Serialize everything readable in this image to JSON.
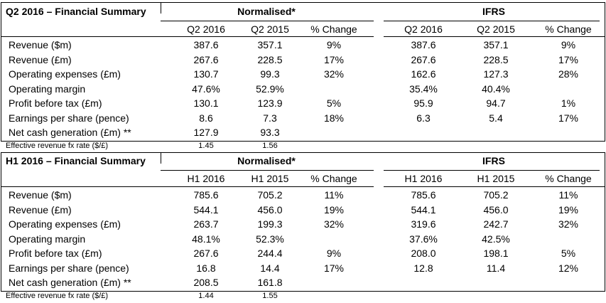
{
  "q2": {
    "title": "Q2 2016 – Financial Summary",
    "normalised_label": "Normalised*",
    "ifrs_label": "IFRS",
    "cols": [
      "Q2 2016",
      "Q2 2015",
      "% Change",
      "Q2 2016",
      "Q2 2015",
      "% Change"
    ],
    "rows": [
      {
        "label": "Revenue ($m)",
        "v": [
          "387.6",
          "357.1",
          "9%",
          "387.6",
          "357.1",
          "9%"
        ]
      },
      {
        "label": "Revenue (£m)",
        "v": [
          "267.6",
          "228.5",
          "17%",
          "267.6",
          "228.5",
          "17%"
        ]
      },
      {
        "label": "Operating expenses (£m)",
        "v": [
          "130.7",
          "99.3",
          "32%",
          "162.6",
          "127.3",
          "28%"
        ]
      },
      {
        "label": "Operating margin",
        "v": [
          "47.6%",
          "52.9%",
          "",
          "35.4%",
          "40.4%",
          ""
        ]
      },
      {
        "label": "Profit before tax (£m)",
        "v": [
          "130.1",
          "123.9",
          "5%",
          "95.9",
          "94.7",
          "1%"
        ]
      },
      {
        "label": "Earnings per share (pence)",
        "v": [
          "8.6",
          "7.3",
          "18%",
          "6.3",
          "5.4",
          "17%"
        ]
      },
      {
        "label": "Net cash generation (£m) **",
        "v": [
          "127.9",
          "93.3",
          "",
          "",
          "",
          ""
        ]
      }
    ],
    "fx_label": "Effective revenue fx rate ($/£)",
    "fx_values": [
      "1.45",
      "1.56"
    ]
  },
  "h1": {
    "title": "H1 2016 – Financial Summary",
    "normalised_label": "Normalised*",
    "ifrs_label": "IFRS",
    "cols": [
      "H1 2016",
      "H1 2015",
      "% Change",
      "H1 2016",
      "H1 2015",
      "% Change"
    ],
    "rows": [
      {
        "label": "Revenue ($m)",
        "v": [
          "785.6",
          "705.2",
          "11%",
          "785.6",
          "705.2",
          "11%"
        ]
      },
      {
        "label": "Revenue (£m)",
        "v": [
          "544.1",
          "456.0",
          "19%",
          "544.1",
          "456.0",
          "19%"
        ]
      },
      {
        "label": "Operating expenses (£m)",
        "v": [
          "263.7",
          "199.3",
          "32%",
          "319.6",
          "242.7",
          "32%"
        ]
      },
      {
        "label": "Operating margin",
        "v": [
          "48.1%",
          "52.3%",
          "",
          "37.6%",
          "42.5%",
          ""
        ]
      },
      {
        "label": "Profit before tax (£m)",
        "v": [
          "267.6",
          "244.4",
          "9%",
          "208.0",
          "198.1",
          "5%"
        ]
      },
      {
        "label": "Earnings per share (pence)",
        "v": [
          "16.8",
          "14.4",
          "17%",
          "12.8",
          "11.4",
          "12%"
        ]
      },
      {
        "label": "Net cash generation (£m) **",
        "v": [
          "208.5",
          "161.8",
          "",
          "",
          "",
          ""
        ]
      }
    ],
    "fx_label": "Effective revenue fx rate ($/£)",
    "fx_values": [
      "1.44",
      "1.55"
    ]
  }
}
